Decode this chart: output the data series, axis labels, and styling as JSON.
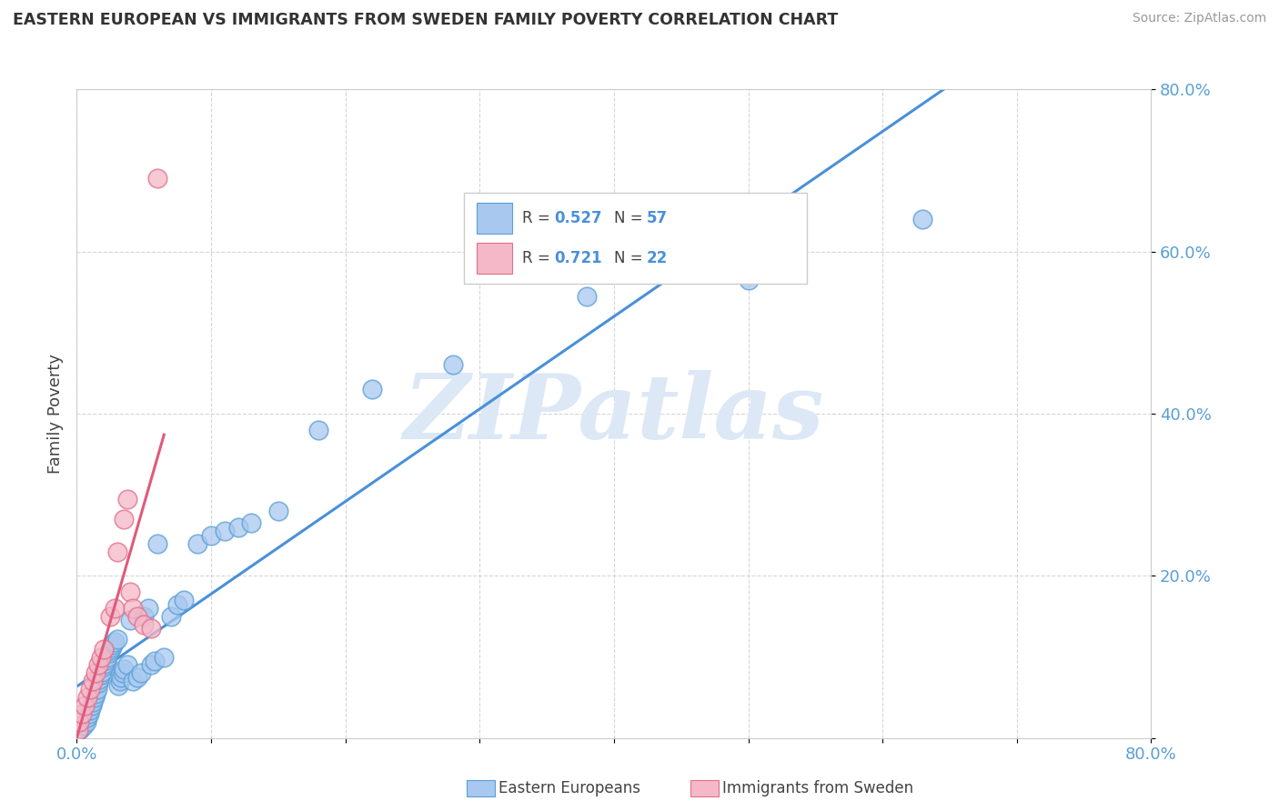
{
  "title": "EASTERN EUROPEAN VS IMMIGRANTS FROM SWEDEN FAMILY POVERTY CORRELATION CHART",
  "source": "Source: ZipAtlas.com",
  "ylabel": "Family Poverty",
  "xlim": [
    0,
    0.8
  ],
  "ylim": [
    0,
    0.8
  ],
  "xticks": [
    0.0,
    0.1,
    0.2,
    0.3,
    0.4,
    0.5,
    0.6,
    0.7,
    0.8
  ],
  "xtick_labels": [
    "0.0%",
    "",
    "",
    "",
    "",
    "",
    "",
    "",
    "80.0%"
  ],
  "yticks": [
    0.0,
    0.2,
    0.4,
    0.6,
    0.8
  ],
  "ytick_labels": [
    "",
    "20.0%",
    "40.0%",
    "60.0%",
    "80.0%"
  ],
  "blue_color": "#a8c8f0",
  "pink_color": "#f5b8c8",
  "blue_edge_color": "#5a9fd4",
  "pink_edge_color": "#e0708a",
  "blue_line_color": "#4a90d9",
  "pink_line_color": "#e05a7a",
  "tick_color": "#5a9fd4",
  "legend_R1": "R = 0.527",
  "legend_N1": "N = 57",
  "legend_R2": "R = 0.721",
  "legend_N2": "N = 22",
  "watermark": "ZIPatlas",
  "watermark_color": "#dce8f5",
  "blue_x": [
    0.002,
    0.003,
    0.005,
    0.007,
    0.008,
    0.009,
    0.01,
    0.011,
    0.012,
    0.013,
    0.014,
    0.015,
    0.016,
    0.017,
    0.018,
    0.019,
    0.02,
    0.021,
    0.022,
    0.023,
    0.024,
    0.025,
    0.026,
    0.027,
    0.028,
    0.03,
    0.031,
    0.032,
    0.033,
    0.034,
    0.035,
    0.038,
    0.04,
    0.042,
    0.045,
    0.048,
    0.05,
    0.053,
    0.055,
    0.058,
    0.06,
    0.065,
    0.07,
    0.075,
    0.08,
    0.09,
    0.1,
    0.11,
    0.12,
    0.13,
    0.15,
    0.18,
    0.22,
    0.28,
    0.38,
    0.5,
    0.63
  ],
  "blue_y": [
    0.01,
    0.012,
    0.015,
    0.02,
    0.025,
    0.03,
    0.035,
    0.04,
    0.045,
    0.05,
    0.055,
    0.06,
    0.068,
    0.072,
    0.078,
    0.082,
    0.088,
    0.092,
    0.096,
    0.1,
    0.105,
    0.108,
    0.112,
    0.115,
    0.118,
    0.122,
    0.065,
    0.07,
    0.075,
    0.08,
    0.085,
    0.09,
    0.145,
    0.07,
    0.075,
    0.08,
    0.15,
    0.16,
    0.09,
    0.095,
    0.24,
    0.1,
    0.15,
    0.165,
    0.17,
    0.24,
    0.25,
    0.255,
    0.26,
    0.265,
    0.28,
    0.38,
    0.43,
    0.46,
    0.545,
    0.565,
    0.64
  ],
  "pink_x": [
    0.001,
    0.002,
    0.004,
    0.006,
    0.008,
    0.01,
    0.012,
    0.014,
    0.016,
    0.018,
    0.02,
    0.025,
    0.028,
    0.03,
    0.035,
    0.038,
    0.04,
    0.042,
    0.045,
    0.05,
    0.055,
    0.06
  ],
  "pink_y": [
    0.01,
    0.02,
    0.03,
    0.04,
    0.05,
    0.06,
    0.07,
    0.08,
    0.09,
    0.1,
    0.11,
    0.15,
    0.16,
    0.23,
    0.27,
    0.295,
    0.18,
    0.16,
    0.15,
    0.14,
    0.135,
    0.69
  ]
}
